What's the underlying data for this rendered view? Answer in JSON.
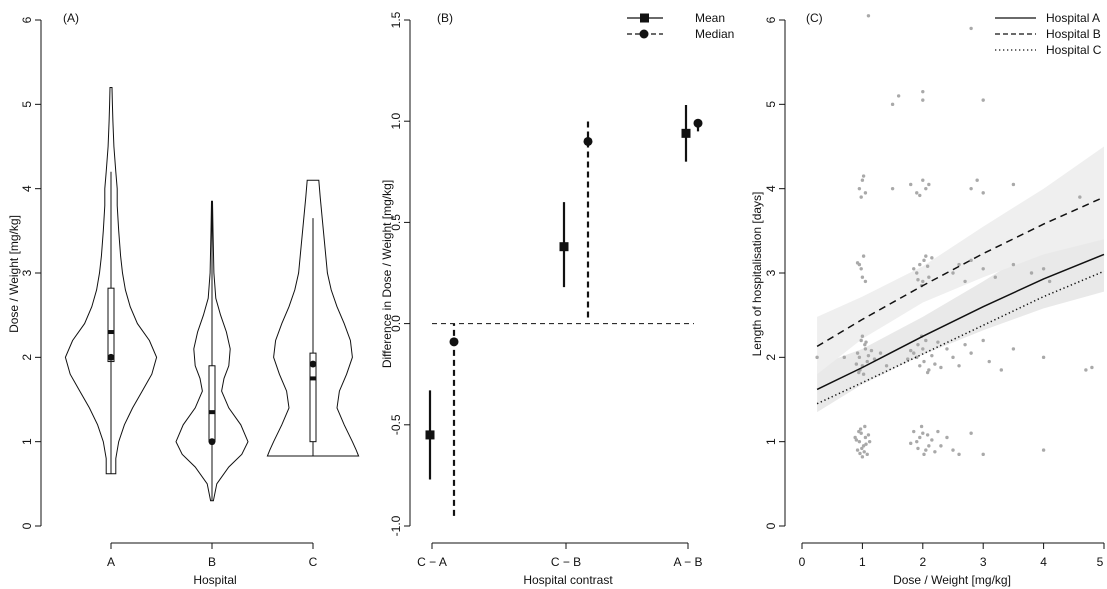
{
  "chart_data": [
    {
      "id": "A",
      "type": "violin",
      "panel_label": "(A)",
      "xlabel": "Hospital",
      "ylabel": "Dose / Weight [mg/kg]",
      "ylim": [
        0,
        6
      ],
      "yticks": [
        "0",
        "1",
        "2",
        "3",
        "4",
        "5",
        "6"
      ],
      "categories": [
        "A",
        "B",
        "C"
      ],
      "violins": [
        {
          "category": "A",
          "profile": [
            [
              0.62,
              0.1
            ],
            [
              0.8,
              0.1
            ],
            [
              1.0,
              0.16
            ],
            [
              1.2,
              0.28
            ],
            [
              1.4,
              0.45
            ],
            [
              1.6,
              0.65
            ],
            [
              1.8,
              0.85
            ],
            [
              2.0,
              0.95
            ],
            [
              2.2,
              0.8
            ],
            [
              2.4,
              0.55
            ],
            [
              2.6,
              0.4
            ],
            [
              2.8,
              0.3
            ],
            [
              3.0,
              0.24
            ],
            [
              3.2,
              0.2
            ],
            [
              3.5,
              0.16
            ],
            [
              3.8,
              0.13
            ],
            [
              4.0,
              0.13
            ],
            [
              4.2,
              0.1
            ],
            [
              4.5,
              0.06
            ],
            [
              4.8,
              0.04
            ],
            [
              5.0,
              0.03
            ],
            [
              5.2,
              0.02
            ]
          ],
          "box": {
            "q1": 1.95,
            "q3": 2.82,
            "whisker_low": 0.62,
            "whisker_high": 4.2
          },
          "median": 2.0,
          "mean": 2.3
        },
        {
          "category": "B",
          "profile": [
            [
              0.3,
              0.03
            ],
            [
              0.5,
              0.1
            ],
            [
              0.7,
              0.35
            ],
            [
              0.85,
              0.62
            ],
            [
              1.0,
              0.75
            ],
            [
              1.2,
              0.6
            ],
            [
              1.4,
              0.35
            ],
            [
              1.6,
              0.2
            ],
            [
              1.75,
              0.25
            ],
            [
              1.9,
              0.35
            ],
            [
              2.1,
              0.38
            ],
            [
              2.3,
              0.3
            ],
            [
              2.5,
              0.18
            ],
            [
              2.7,
              0.08
            ],
            [
              3.0,
              0.04
            ],
            [
              3.5,
              0.02
            ],
            [
              3.85,
              0.01
            ]
          ],
          "box": {
            "q1": 1.0,
            "q3": 1.9,
            "whisker_low": 0.3,
            "whisker_high": 3.85
          },
          "median": 1.0,
          "mean": 1.35
        },
        {
          "category": "C",
          "profile": [
            [
              0.83,
              0.95
            ],
            [
              0.9,
              0.9
            ],
            [
              1.0,
              0.82
            ],
            [
              1.2,
              0.65
            ],
            [
              1.4,
              0.5
            ],
            [
              1.6,
              0.55
            ],
            [
              1.8,
              0.7
            ],
            [
              2.0,
              0.82
            ],
            [
              2.2,
              0.78
            ],
            [
              2.4,
              0.65
            ],
            [
              2.6,
              0.5
            ],
            [
              2.8,
              0.38
            ],
            [
              3.0,
              0.3
            ],
            [
              3.3,
              0.25
            ],
            [
              3.6,
              0.2
            ],
            [
              3.9,
              0.15
            ],
            [
              4.1,
              0.12
            ]
          ],
          "box": {
            "q1": 1.0,
            "q3": 2.05,
            "whisker_low": 0.83,
            "whisker_high": 3.65
          },
          "median": 1.92,
          "mean": 1.75
        }
      ]
    },
    {
      "id": "B",
      "type": "intervals",
      "panel_label": "(B)",
      "xlabel": "Hospital contrast",
      "ylabel": "Difference in Dose / Weight [mg/kg]",
      "ylim": [
        -1.0,
        1.5
      ],
      "yticks": [
        "-1.0",
        "-0.5",
        "0.0",
        "0.5",
        "1.0",
        "1.5"
      ],
      "categories": [
        "C − A",
        "C − B",
        "A − B"
      ],
      "reference_line": 0,
      "legend": {
        "position": "top-right",
        "entries": [
          "Mean",
          "Median"
        ]
      },
      "series": [
        {
          "name": "Mean",
          "marker": "square",
          "line": "solid",
          "estimates": [
            -0.55,
            0.38,
            0.94
          ],
          "lower": [
            -0.77,
            0.18,
            0.8
          ],
          "upper": [
            -0.33,
            0.6,
            1.08
          ]
        },
        {
          "name": "Median",
          "marker": "circle",
          "line": "dashed",
          "estimates": [
            -0.09,
            0.9,
            0.99
          ],
          "lower": [
            -0.95,
            0.03,
            0.95
          ],
          "upper": [
            0.0,
            1.0,
            1.0
          ]
        }
      ]
    },
    {
      "id": "C",
      "type": "scatter",
      "panel_label": "(C)",
      "xlabel": "Dose / Weight [mg/kg]",
      "ylabel": "Length of hospitalisation [days]",
      "xlim": [
        0,
        5
      ],
      "ylim": [
        0,
        6
      ],
      "xticks": [
        "0",
        "1",
        "2",
        "3",
        "4",
        "5"
      ],
      "yticks": [
        "0",
        "1",
        "2",
        "3",
        "4",
        "5",
        "6"
      ],
      "legend": {
        "position": "top-right",
        "entries": [
          "Hospital A",
          "Hospital B",
          "Hospital C"
        ]
      },
      "fit_lines": [
        {
          "name": "Hospital A",
          "style": "solid",
          "points": [
            [
              0.25,
              1.62
            ],
            [
              1,
              1.88
            ],
            [
              2,
              2.25
            ],
            [
              3,
              2.6
            ],
            [
              4,
              2.93
            ],
            [
              5,
              3.22
            ]
          ]
        },
        {
          "name": "Hospital B",
          "style": "dashed",
          "points": [
            [
              0.25,
              2.13
            ],
            [
              1,
              2.45
            ],
            [
              2,
              2.85
            ],
            [
              3,
              3.23
            ],
            [
              4,
              3.58
            ],
            [
              5,
              3.9
            ]
          ]
        },
        {
          "name": "Hospital C",
          "style": "dotted",
          "points": [
            [
              0.25,
              1.45
            ],
            [
              1,
              1.7
            ],
            [
              2,
              2.04
            ],
            [
              3,
              2.38
            ],
            [
              4,
              2.72
            ],
            [
              5,
              3.02
            ]
          ]
        }
      ],
      "confidence_bands": [
        {
          "lower": [
            [
              0.25,
              1.35
            ],
            [
              1,
              1.68
            ],
            [
              2,
              2.03
            ],
            [
              3,
              2.32
            ],
            [
              4,
              2.58
            ],
            [
              5,
              2.78
            ]
          ],
          "upper": [
            [
              0.25,
              1.9
            ],
            [
              1,
              2.1
            ],
            [
              2,
              2.48
            ],
            [
              3,
              2.9
            ],
            [
              4,
              3.35
            ],
            [
              5,
              3.75
            ]
          ]
        },
        {
          "lower": [
            [
              0.25,
              1.8
            ],
            [
              1,
              2.22
            ],
            [
              2,
              2.65
            ],
            [
              3,
              2.95
            ],
            [
              4,
              3.22
            ],
            [
              5,
              3.4
            ]
          ],
          "upper": [
            [
              0.25,
              2.48
            ],
            [
              1,
              2.72
            ],
            [
              2,
              3.08
            ],
            [
              3,
              3.55
            ],
            [
              4,
              4.0
            ],
            [
              5,
              4.5
            ]
          ]
        }
      ],
      "points": [
        [
          0.95,
          1.0
        ],
        [
          1.02,
          0.95
        ],
        [
          0.98,
          1.1
        ],
        [
          1.05,
          1.05
        ],
        [
          0.92,
          0.9
        ],
        [
          1.08,
          0.85
        ],
        [
          0.97,
          1.15
        ],
        [
          1.03,
          0.88
        ],
        [
          0.9,
          1.02
        ],
        [
          1.1,
          1.08
        ],
        [
          1.0,
          0.82
        ],
        [
          0.94,
          1.12
        ],
        [
          1.06,
          0.97
        ],
        [
          0.99,
          0.92
        ],
        [
          1.12,
          1.0
        ],
        [
          0.88,
          1.05
        ],
        [
          1.04,
          1.18
        ],
        [
          0.96,
          0.86
        ],
        [
          1.9,
          1.0
        ],
        [
          2.0,
          1.1
        ],
        [
          2.05,
          0.9
        ],
        [
          1.95,
          1.05
        ],
        [
          2.1,
          0.95
        ],
        [
          1.85,
          1.12
        ],
        [
          2.02,
          0.85
        ],
        [
          1.98,
          1.18
        ],
        [
          2.15,
          1.02
        ],
        [
          1.92,
          0.92
        ],
        [
          2.08,
          1.08
        ],
        [
          2.2,
          0.88
        ],
        [
          1.8,
          0.98
        ],
        [
          2.25,
          1.12
        ],
        [
          2.3,
          0.95
        ],
        [
          2.4,
          1.05
        ],
        [
          2.5,
          0.9
        ],
        [
          2.6,
          0.85
        ],
        [
          2.8,
          1.1
        ],
        [
          3.0,
          0.85
        ],
        [
          4.0,
          0.9
        ],
        [
          0.95,
          2.0
        ],
        [
          1.0,
          1.9
        ],
        [
          1.05,
          2.1
        ],
        [
          0.98,
          2.2
        ],
        [
          1.02,
          1.8
        ],
        [
          0.92,
          2.05
        ],
        [
          1.08,
          1.95
        ],
        [
          1.0,
          2.25
        ],
        [
          0.96,
          1.85
        ],
        [
          1.04,
          2.15
        ],
        [
          1.1,
          2.02
        ],
        [
          0.9,
          1.92
        ],
        [
          1.06,
          2.18
        ],
        [
          0.94,
          1.82
        ],
        [
          1.15,
          2.08
        ],
        [
          1.2,
          1.98
        ],
        [
          1.3,
          2.05
        ],
        [
          1.4,
          1.9
        ],
        [
          0.7,
          2.0
        ],
        [
          0.25,
          2.0
        ],
        [
          1.9,
          2.0
        ],
        [
          1.95,
          1.9
        ],
        [
          2.0,
          2.1
        ],
        [
          2.05,
          2.2
        ],
        [
          2.1,
          1.85
        ],
        [
          1.85,
          2.05
        ],
        [
          2.02,
          1.95
        ],
        [
          1.98,
          2.25
        ],
        [
          2.08,
          1.82
        ],
        [
          1.92,
          2.15
        ],
        [
          2.15,
          2.02
        ],
        [
          2.2,
          1.92
        ],
        [
          1.8,
          2.08
        ],
        [
          2.25,
          2.18
        ],
        [
          2.3,
          1.88
        ],
        [
          1.75,
          1.98
        ],
        [
          2.4,
          2.1
        ],
        [
          2.5,
          2.0
        ],
        [
          2.6,
          1.9
        ],
        [
          2.7,
          2.15
        ],
        [
          2.8,
          2.05
        ],
        [
          3.0,
          2.2
        ],
        [
          3.1,
          1.95
        ],
        [
          3.3,
          1.85
        ],
        [
          3.5,
          2.1
        ],
        [
          4.0,
          2.0
        ],
        [
          4.7,
          1.85
        ],
        [
          4.8,
          1.88
        ],
        [
          0.95,
          3.1
        ],
        [
          1.0,
          2.95
        ],
        [
          1.02,
          3.2
        ],
        [
          0.98,
          3.05
        ],
        [
          1.05,
          2.9
        ],
        [
          0.92,
          3.12
        ],
        [
          1.9,
          3.0
        ],
        [
          1.95,
          3.1
        ],
        [
          2.0,
          2.9
        ],
        [
          2.05,
          3.2
        ],
        [
          2.1,
          2.95
        ],
        [
          1.85,
          3.05
        ],
        [
          2.02,
          3.15
        ],
        [
          1.98,
          2.85
        ],
        [
          2.08,
          3.08
        ],
        [
          1.92,
          2.92
        ],
        [
          2.15,
          3.18
        ],
        [
          2.5,
          3.0
        ],
        [
          2.6,
          3.1
        ],
        [
          2.7,
          2.9
        ],
        [
          2.8,
          3.15
        ],
        [
          3.0,
          3.05
        ],
        [
          3.2,
          2.95
        ],
        [
          3.5,
          3.1
        ],
        [
          3.8,
          3.0
        ],
        [
          4.0,
          3.05
        ],
        [
          4.1,
          2.9
        ],
        [
          0.95,
          4.0
        ],
        [
          1.0,
          4.1
        ],
        [
          1.05,
          3.95
        ],
        [
          1.02,
          4.15
        ],
        [
          0.98,
          3.9
        ],
        [
          1.5,
          4.0
        ],
        [
          1.8,
          4.05
        ],
        [
          1.9,
          3.95
        ],
        [
          2.0,
          4.1
        ],
        [
          2.05,
          4.0
        ],
        [
          1.95,
          3.92
        ],
        [
          2.1,
          4.05
        ],
        [
          2.8,
          4.0
        ],
        [
          2.9,
          4.1
        ],
        [
          3.0,
          3.95
        ],
        [
          3.5,
          4.05
        ],
        [
          4.6,
          3.9
        ],
        [
          1.5,
          5.0
        ],
        [
          1.6,
          5.1
        ],
        [
          2.0,
          5.15
        ],
        [
          2.0,
          5.05
        ],
        [
          3.0,
          5.05
        ],
        [
          1.1,
          6.05
        ],
        [
          2.8,
          5.9
        ]
      ]
    }
  ]
}
